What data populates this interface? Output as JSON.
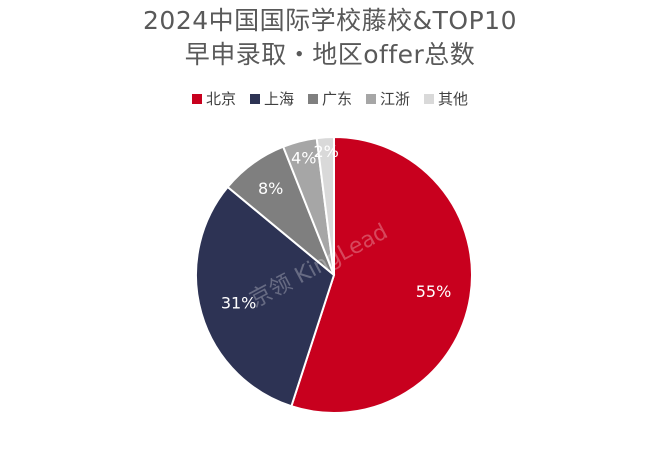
{
  "chart_data": {
    "type": "pie",
    "title": "2024中国国际学校藤校&TOP10",
    "subtitle": "早申录取・地区offer总数",
    "legend_position": "top",
    "slices": [
      {
        "name": "北京",
        "value": 55,
        "label": "55%",
        "color": "#c8001e"
      },
      {
        "name": "上海",
        "value": 31,
        "label": "31%",
        "color": "#2d3354"
      },
      {
        "name": "广东",
        "value": 8,
        "label": "8%",
        "color": "#7f7f7f"
      },
      {
        "name": "江浙",
        "value": 4,
        "label": "4%",
        "color": "#a6a6a6"
      },
      {
        "name": "其他",
        "value": 2,
        "label": "2%",
        "color": "#d9d9d9"
      }
    ]
  },
  "watermark": "京领 KingLead"
}
